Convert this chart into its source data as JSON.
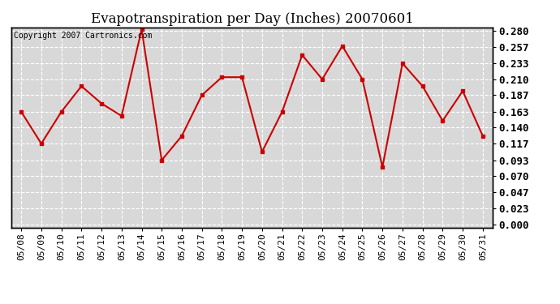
{
  "title": "Evapotranspiration per Day (Inches) 20070601",
  "copyright_text": "Copyright 2007 Cartronics.com",
  "dates": [
    "05/08",
    "05/09",
    "05/10",
    "05/11",
    "05/12",
    "05/13",
    "05/14",
    "05/15",
    "05/16",
    "05/17",
    "05/18",
    "05/19",
    "05/20",
    "05/21",
    "05/22",
    "05/23",
    "05/24",
    "05/25",
    "05/26",
    "05/27",
    "05/28",
    "05/29",
    "05/30",
    "05/31"
  ],
  "values": [
    0.163,
    0.117,
    0.163,
    0.2,
    0.175,
    0.157,
    0.282,
    0.093,
    0.128,
    0.187,
    0.213,
    0.213,
    0.105,
    0.163,
    0.245,
    0.21,
    0.258,
    0.21,
    0.083,
    0.233,
    0.2,
    0.15,
    0.193,
    0.128
  ],
  "line_color": "#cc0000",
  "marker": "s",
  "marker_size": 3,
  "bg_color": "#ffffff",
  "plot_bg_color": "#d8d8d8",
  "grid_color": "#ffffff",
  "yticks": [
    0.0,
    0.023,
    0.047,
    0.07,
    0.093,
    0.117,
    0.14,
    0.163,
    0.187,
    0.21,
    0.233,
    0.257,
    0.28
  ],
  "ymin": -0.005,
  "ymax": 0.285,
  "title_fontsize": 12,
  "copyright_fontsize": 7,
  "tick_fontsize": 9,
  "xtick_fontsize": 8,
  "line_width": 1.5
}
